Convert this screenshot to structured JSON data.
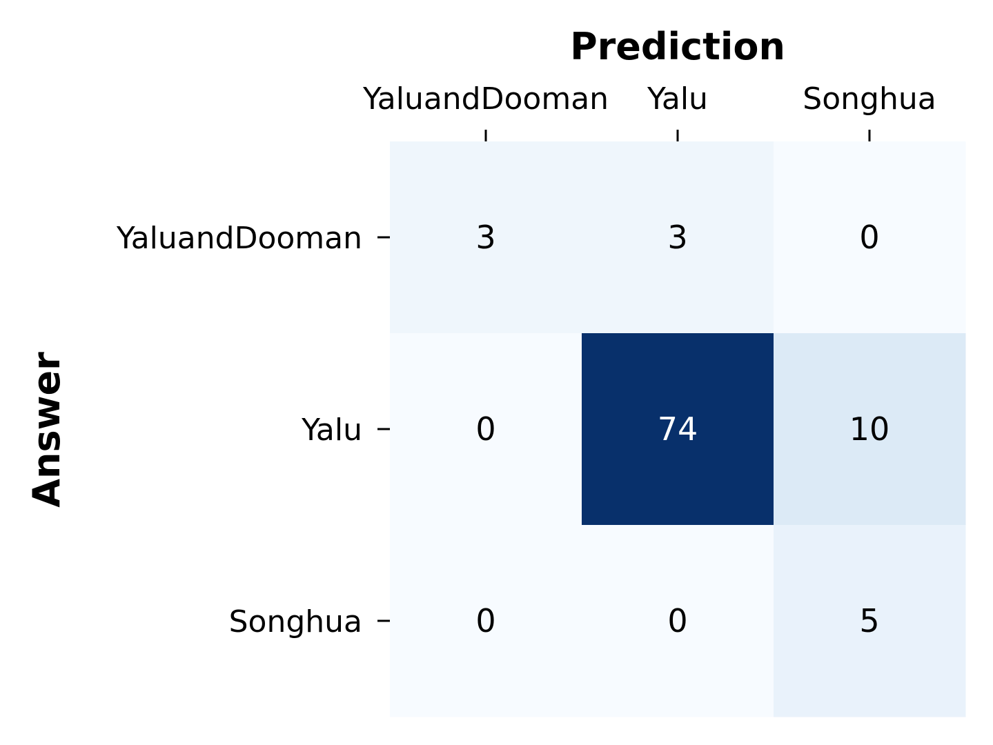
{
  "chart_data": {
    "type": "heatmap",
    "title": "",
    "xlabel": "Prediction",
    "ylabel": "Answer",
    "x_categories": [
      "YaluandDooman",
      "Yalu",
      "Songhua"
    ],
    "y_categories": [
      "YaluandDooman",
      "Yalu",
      "Songhua"
    ],
    "values": [
      [
        3,
        3,
        0
      ],
      [
        0,
        74,
        10
      ],
      [
        0,
        0,
        5
      ]
    ],
    "colormap": "Blues",
    "color_low": "#f7fbff",
    "color_high": "#08306b",
    "text_color_dark": "#000000",
    "text_color_light": "#ffffff",
    "x_axis_position": "top",
    "colorbar": false,
    "grid": false
  }
}
